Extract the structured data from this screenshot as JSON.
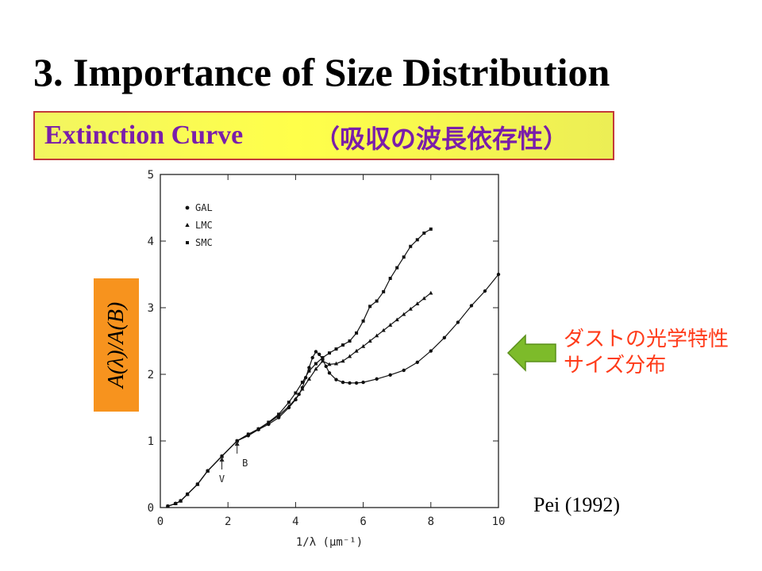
{
  "slide": {
    "title": "3. Importance of Size Distribution",
    "subtitle_en": "Extinction Curve",
    "subtitle_jp": "（吸収の波長依存性）",
    "y_axis_badge": "A(λ)/A(B)",
    "annotation_line1": "ダストの光学特性",
    "annotation_line2": "サイズ分布",
    "credit": "Pei (1992)",
    "colors": {
      "subtitle_bg": "#ffff4a",
      "subtitle_text": "#7a1eaa",
      "subtitle_border": "#c33a3a",
      "badge_bg": "#f7931e",
      "annotation_text": "#ff3b1a",
      "arrow": "#7dbb2a"
    },
    "arrow_icon": "left-arrow-icon"
  },
  "chart_data": {
    "type": "line",
    "xlabel": "1/λ  (μm⁻¹)",
    "ylabel": "A(λ)/A(B)",
    "xlim": [
      0,
      10
    ],
    "ylim": [
      0,
      5
    ],
    "x_ticks": [
      0,
      2,
      4,
      6,
      8,
      10
    ],
    "y_ticks": [
      0,
      1,
      2,
      3,
      4,
      5
    ],
    "grid": false,
    "legend_position": "top-left",
    "markers": [
      {
        "label": "V",
        "x": 1.82
      },
      {
        "label": "B",
        "x": 2.27
      }
    ],
    "series": [
      {
        "name": "GAL",
        "marker": "circle",
        "x": [
          0.22,
          0.45,
          0.6,
          0.8,
          1.1,
          1.4,
          1.82,
          2.27,
          2.6,
          2.9,
          3.2,
          3.5,
          3.8,
          4.0,
          4.1,
          4.2,
          4.3,
          4.4,
          4.5,
          4.6,
          4.7,
          4.8,
          4.9,
          5.0,
          5.2,
          5.4,
          5.6,
          5.8,
          6.0,
          6.4,
          6.8,
          7.2,
          7.6,
          8.0,
          8.4,
          8.8,
          9.2,
          9.6,
          10.0
        ],
        "y": [
          0.02,
          0.06,
          0.1,
          0.2,
          0.35,
          0.55,
          0.77,
          1.0,
          1.08,
          1.17,
          1.25,
          1.35,
          1.5,
          1.62,
          1.7,
          1.8,
          1.95,
          2.1,
          2.25,
          2.34,
          2.3,
          2.22,
          2.12,
          2.02,
          1.92,
          1.88,
          1.87,
          1.87,
          1.88,
          1.93,
          1.99,
          2.06,
          2.18,
          2.35,
          2.55,
          2.78,
          3.03,
          3.25,
          3.5
        ]
      },
      {
        "name": "LMC",
        "marker": "triangle",
        "x": [
          0.22,
          0.45,
          0.6,
          0.8,
          1.1,
          1.4,
          1.82,
          2.27,
          2.6,
          2.9,
          3.2,
          3.5,
          3.8,
          4.0,
          4.2,
          4.4,
          4.6,
          4.8,
          5.0,
          5.2,
          5.4,
          5.6,
          5.8,
          6.0,
          6.2,
          6.4,
          6.6,
          6.8,
          7.0,
          7.2,
          7.4,
          7.6,
          7.8,
          8.0
        ],
        "y": [
          0.02,
          0.06,
          0.1,
          0.2,
          0.35,
          0.55,
          0.77,
          1.0,
          1.1,
          1.18,
          1.27,
          1.38,
          1.52,
          1.63,
          1.78,
          1.93,
          2.08,
          2.2,
          2.15,
          2.16,
          2.2,
          2.27,
          2.35,
          2.42,
          2.5,
          2.58,
          2.66,
          2.74,
          2.82,
          2.9,
          2.98,
          3.06,
          3.14,
          3.22
        ]
      },
      {
        "name": "SMC",
        "marker": "square",
        "x": [
          0.22,
          0.45,
          0.6,
          0.8,
          1.1,
          1.4,
          1.82,
          2.27,
          2.6,
          2.9,
          3.2,
          3.5,
          3.8,
          4.0,
          4.2,
          4.4,
          4.6,
          4.8,
          5.0,
          5.2,
          5.4,
          5.6,
          5.8,
          6.0,
          6.2,
          6.4,
          6.6,
          6.8,
          7.0,
          7.2,
          7.4,
          7.6,
          7.8,
          8.0
        ],
        "y": [
          0.02,
          0.06,
          0.1,
          0.2,
          0.35,
          0.55,
          0.77,
          1.0,
          1.1,
          1.18,
          1.28,
          1.4,
          1.58,
          1.72,
          1.88,
          2.05,
          2.16,
          2.25,
          2.32,
          2.38,
          2.44,
          2.5,
          2.62,
          2.8,
          3.02,
          3.1,
          3.24,
          3.44,
          3.6,
          3.76,
          3.92,
          4.02,
          4.12,
          4.18
        ]
      }
    ]
  }
}
